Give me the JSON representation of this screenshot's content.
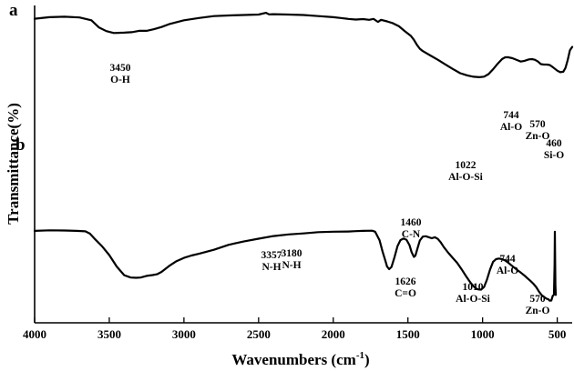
{
  "chart_data": {
    "type": "line",
    "title": "",
    "xlabel": "Wavenumbers (cm",
    "xlabel_sup": "-1",
    "xlabel_end": ")",
    "ylabel": "Transmittance(%)",
    "xlim": [
      4000,
      400
    ],
    "x_reversed": true,
    "xticks": [
      "4000",
      "3500",
      "3000",
      "2500",
      "2000",
      "1500",
      "1000",
      "500"
    ],
    "xtick_values": [
      4000,
      3500,
      3000,
      2500,
      2000,
      1500,
      1000,
      500
    ],
    "ylim": [
      0,
      100
    ],
    "grid": false,
    "series": [
      {
        "name": "a",
        "points": [
          [
            4000,
            91.5
          ],
          [
            3900,
            92.5
          ],
          [
            3800,
            92.8
          ],
          [
            3700,
            92.3
          ],
          [
            3620,
            90.5
          ],
          [
            3570,
            86
          ],
          [
            3520,
            83.6
          ],
          [
            3470,
            82.4
          ],
          [
            3440,
            82.5
          ],
          [
            3400,
            82.6
          ],
          [
            3350,
            82.9
          ],
          [
            3300,
            83.8
          ],
          [
            3250,
            83.8
          ],
          [
            3200,
            84.8
          ],
          [
            3150,
            86.2
          ],
          [
            3100,
            88
          ],
          [
            3000,
            90.5
          ],
          [
            2900,
            92
          ],
          [
            2800,
            93.2
          ],
          [
            2700,
            93.6
          ],
          [
            2600,
            93.9
          ],
          [
            2500,
            94.2
          ],
          [
            2450,
            95.3
          ],
          [
            2430,
            94.3
          ],
          [
            2400,
            94.4
          ],
          [
            2300,
            94.2
          ],
          [
            2200,
            93.9
          ],
          [
            2100,
            93.2
          ],
          [
            2000,
            92.5
          ],
          [
            1950,
            92
          ],
          [
            1900,
            91.4
          ],
          [
            1850,
            91
          ],
          [
            1800,
            91.3
          ],
          [
            1760,
            90.8
          ],
          [
            1730,
            91.4
          ],
          [
            1700,
            89.5
          ],
          [
            1680,
            90.8
          ],
          [
            1640,
            89.8
          ],
          [
            1600,
            88.6
          ],
          [
            1560,
            86.7
          ],
          [
            1520,
            83.5
          ],
          [
            1480,
            80.5
          ],
          [
            1460,
            78
          ],
          [
            1440,
            74.8
          ],
          [
            1420,
            72.3
          ],
          [
            1400,
            70.8
          ],
          [
            1350,
            68
          ],
          [
            1300,
            65.3
          ],
          [
            1250,
            62.3
          ],
          [
            1200,
            59.4
          ],
          [
            1150,
            56.7
          ],
          [
            1100,
            55.2
          ],
          [
            1060,
            54.4
          ],
          [
            1022,
            54.1
          ],
          [
            990,
            54.5
          ],
          [
            960,
            56.1
          ],
          [
            930,
            59.1
          ],
          [
            900,
            62.7
          ],
          [
            870,
            65.7
          ],
          [
            850,
            66.8
          ],
          [
            830,
            66.9
          ],
          [
            800,
            66.3
          ],
          [
            770,
            65.1
          ],
          [
            744,
            64.1
          ],
          [
            720,
            64.6
          ],
          [
            690,
            65.5
          ],
          [
            670,
            65.7
          ],
          [
            650,
            65.3
          ],
          [
            630,
            64.2
          ],
          [
            610,
            62.5
          ],
          [
            590,
            62.2
          ],
          [
            570,
            62.2
          ],
          [
            550,
            61.9
          ],
          [
            530,
            60.6
          ],
          [
            500,
            58.3
          ],
          [
            480,
            57.3
          ],
          [
            460,
            57.6
          ],
          [
            445,
            60
          ],
          [
            430,
            65.1
          ],
          [
            415,
            71.3
          ],
          [
            400,
            73.5
          ]
        ]
      },
      {
        "name": "b",
        "points": [
          [
            4000,
            52.3
          ],
          [
            3900,
            52.6
          ],
          [
            3800,
            52.5
          ],
          [
            3720,
            52.3
          ],
          [
            3660,
            52
          ],
          [
            3630,
            50.6
          ],
          [
            3600,
            47.6
          ],
          [
            3550,
            43
          ],
          [
            3500,
            37.5
          ],
          [
            3450,
            30.5
          ],
          [
            3400,
            25.2
          ],
          [
            3357,
            23.8
          ],
          [
            3320,
            23.6
          ],
          [
            3290,
            23.8
          ],
          [
            3250,
            24.8
          ],
          [
            3210,
            25.3
          ],
          [
            3180,
            25.8
          ],
          [
            3150,
            27.2
          ],
          [
            3100,
            30.8
          ],
          [
            3050,
            33.8
          ],
          [
            3000,
            35.8
          ],
          [
            2950,
            37.2
          ],
          [
            2900,
            38.3
          ],
          [
            2800,
            40.7
          ],
          [
            2700,
            43.8
          ],
          [
            2600,
            45.8
          ],
          [
            2500,
            47.5
          ],
          [
            2400,
            49.1
          ],
          [
            2300,
            50.1
          ],
          [
            2200,
            50.7
          ],
          [
            2100,
            51.5
          ],
          [
            2000,
            51.8
          ],
          [
            1900,
            51.9
          ],
          [
            1850,
            52.1
          ],
          [
            1800,
            52.3
          ],
          [
            1740,
            52.4
          ],
          [
            1720,
            51.8
          ],
          [
            1690,
            46.5
          ],
          [
            1670,
            39.6
          ],
          [
            1650,
            33.8
          ],
          [
            1640,
            30.5
          ],
          [
            1626,
            28.9
          ],
          [
            1610,
            30.2
          ],
          [
            1590,
            36.2
          ],
          [
            1570,
            43
          ],
          [
            1550,
            46.6
          ],
          [
            1530,
            47.6
          ],
          [
            1510,
            46.9
          ],
          [
            1490,
            43.6
          ],
          [
            1475,
            39.2
          ],
          [
            1460,
            36.4
          ],
          [
            1450,
            37.1
          ],
          [
            1435,
            41.9
          ],
          [
            1420,
            46.4
          ],
          [
            1400,
            48.8
          ],
          [
            1380,
            49
          ],
          [
            1360,
            48.4
          ],
          [
            1340,
            47.8
          ],
          [
            1320,
            48.4
          ],
          [
            1300,
            47.4
          ],
          [
            1280,
            45.2
          ],
          [
            1260,
            42.4
          ],
          [
            1230,
            38.9
          ],
          [
            1200,
            35.8
          ],
          [
            1170,
            32.7
          ],
          [
            1140,
            28.8
          ],
          [
            1110,
            24.5
          ],
          [
            1080,
            20.5
          ],
          [
            1050,
            17.4
          ],
          [
            1030,
            16.5
          ],
          [
            1010,
            16.4
          ],
          [
            990,
            18
          ],
          [
            970,
            22.7
          ],
          [
            950,
            28.7
          ],
          [
            930,
            33.3
          ],
          [
            910,
            35
          ],
          [
            890,
            35.4
          ],
          [
            870,
            35
          ],
          [
            850,
            34.3
          ],
          [
            830,
            33
          ],
          [
            800,
            30.7
          ],
          [
            770,
            28.5
          ],
          [
            744,
            26.8
          ],
          [
            720,
            25
          ],
          [
            700,
            23.4
          ],
          [
            680,
            21.8
          ],
          [
            660,
            20
          ],
          [
            640,
            17.8
          ],
          [
            620,
            14.9
          ],
          [
            600,
            12.6
          ],
          [
            580,
            11.4
          ],
          [
            570,
            10.8
          ],
          [
            560,
            10.5
          ],
          [
            550,
            9.6
          ],
          [
            540,
            9.7
          ],
          [
            530,
            12.6
          ],
          [
            522,
            13.3
          ],
          [
            518,
            31.7
          ],
          [
            516,
            51.8
          ],
          [
            514,
            34.5
          ],
          [
            512,
            19.2
          ],
          [
            510,
            13.1
          ]
        ]
      }
    ],
    "annotations": [
      {
        "series": "a",
        "wavenumber": "3450",
        "group": "O-H",
        "x": 3450
      },
      {
        "series": "a",
        "wavenumber": "1022",
        "group": "Al-O-Si",
        "x": 1022
      },
      {
        "series": "a",
        "wavenumber": "744",
        "group": "Al-O",
        "x": 744
      },
      {
        "series": "a",
        "wavenumber": "570",
        "group": "Zn-O",
        "x": 570
      },
      {
        "series": "a",
        "wavenumber": "460",
        "group": "Si-O",
        "x": 460
      },
      {
        "series": "b",
        "wavenumber": "3357",
        "group": "N-H",
        "x": 3357
      },
      {
        "series": "b",
        "wavenumber": "3180",
        "group": "N-H",
        "x": 3180
      },
      {
        "series": "b",
        "wavenumber": "1626",
        "group": "C=O",
        "x": 1626
      },
      {
        "series": "b",
        "wavenumber": "1460",
        "group": "C-N",
        "x": 1460
      },
      {
        "series": "b",
        "wavenumber": "1010",
        "group": "Al-O-Si",
        "x": 1010
      },
      {
        "series": "b",
        "wavenumber": "744",
        "group": "Al-O",
        "x": 744
      },
      {
        "series": "b",
        "wavenumber": "570",
        "group": "Zn-O",
        "x": 570
      }
    ]
  }
}
